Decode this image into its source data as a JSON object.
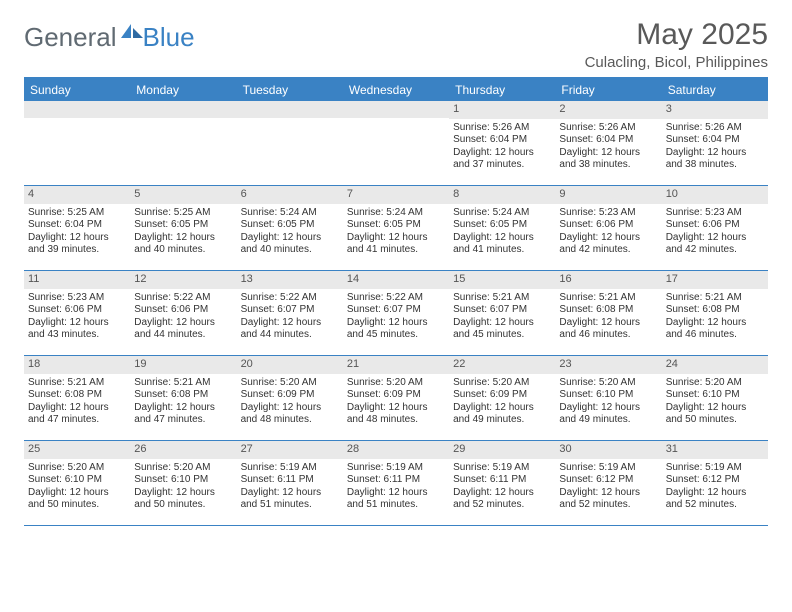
{
  "logo": {
    "general": "General",
    "blue": "Blue"
  },
  "title": "May 2025",
  "location": "Culacling, Bicol, Philippines",
  "dayHeaders": [
    "Sunday",
    "Monday",
    "Tuesday",
    "Wednesday",
    "Thursday",
    "Friday",
    "Saturday"
  ],
  "colors": {
    "accent": "#3a82c4",
    "headerText": "#595959",
    "daybg": "#e9e9e9"
  },
  "weeks": [
    [
      {
        "n": "",
        "sr": "",
        "ss": "",
        "dl1": "",
        "dl2": ""
      },
      {
        "n": "",
        "sr": "",
        "ss": "",
        "dl1": "",
        "dl2": ""
      },
      {
        "n": "",
        "sr": "",
        "ss": "",
        "dl1": "",
        "dl2": ""
      },
      {
        "n": "",
        "sr": "",
        "ss": "",
        "dl1": "",
        "dl2": ""
      },
      {
        "n": "1",
        "sr": "Sunrise: 5:26 AM",
        "ss": "Sunset: 6:04 PM",
        "dl1": "Daylight: 12 hours",
        "dl2": "and 37 minutes."
      },
      {
        "n": "2",
        "sr": "Sunrise: 5:26 AM",
        "ss": "Sunset: 6:04 PM",
        "dl1": "Daylight: 12 hours",
        "dl2": "and 38 minutes."
      },
      {
        "n": "3",
        "sr": "Sunrise: 5:26 AM",
        "ss": "Sunset: 6:04 PM",
        "dl1": "Daylight: 12 hours",
        "dl2": "and 38 minutes."
      }
    ],
    [
      {
        "n": "4",
        "sr": "Sunrise: 5:25 AM",
        "ss": "Sunset: 6:04 PM",
        "dl1": "Daylight: 12 hours",
        "dl2": "and 39 minutes."
      },
      {
        "n": "5",
        "sr": "Sunrise: 5:25 AM",
        "ss": "Sunset: 6:05 PM",
        "dl1": "Daylight: 12 hours",
        "dl2": "and 40 minutes."
      },
      {
        "n": "6",
        "sr": "Sunrise: 5:24 AM",
        "ss": "Sunset: 6:05 PM",
        "dl1": "Daylight: 12 hours",
        "dl2": "and 40 minutes."
      },
      {
        "n": "7",
        "sr": "Sunrise: 5:24 AM",
        "ss": "Sunset: 6:05 PM",
        "dl1": "Daylight: 12 hours",
        "dl2": "and 41 minutes."
      },
      {
        "n": "8",
        "sr": "Sunrise: 5:24 AM",
        "ss": "Sunset: 6:05 PM",
        "dl1": "Daylight: 12 hours",
        "dl2": "and 41 minutes."
      },
      {
        "n": "9",
        "sr": "Sunrise: 5:23 AM",
        "ss": "Sunset: 6:06 PM",
        "dl1": "Daylight: 12 hours",
        "dl2": "and 42 minutes."
      },
      {
        "n": "10",
        "sr": "Sunrise: 5:23 AM",
        "ss": "Sunset: 6:06 PM",
        "dl1": "Daylight: 12 hours",
        "dl2": "and 42 minutes."
      }
    ],
    [
      {
        "n": "11",
        "sr": "Sunrise: 5:23 AM",
        "ss": "Sunset: 6:06 PM",
        "dl1": "Daylight: 12 hours",
        "dl2": "and 43 minutes."
      },
      {
        "n": "12",
        "sr": "Sunrise: 5:22 AM",
        "ss": "Sunset: 6:06 PM",
        "dl1": "Daylight: 12 hours",
        "dl2": "and 44 minutes."
      },
      {
        "n": "13",
        "sr": "Sunrise: 5:22 AM",
        "ss": "Sunset: 6:07 PM",
        "dl1": "Daylight: 12 hours",
        "dl2": "and 44 minutes."
      },
      {
        "n": "14",
        "sr": "Sunrise: 5:22 AM",
        "ss": "Sunset: 6:07 PM",
        "dl1": "Daylight: 12 hours",
        "dl2": "and 45 minutes."
      },
      {
        "n": "15",
        "sr": "Sunrise: 5:21 AM",
        "ss": "Sunset: 6:07 PM",
        "dl1": "Daylight: 12 hours",
        "dl2": "and 45 minutes."
      },
      {
        "n": "16",
        "sr": "Sunrise: 5:21 AM",
        "ss": "Sunset: 6:08 PM",
        "dl1": "Daylight: 12 hours",
        "dl2": "and 46 minutes."
      },
      {
        "n": "17",
        "sr": "Sunrise: 5:21 AM",
        "ss": "Sunset: 6:08 PM",
        "dl1": "Daylight: 12 hours",
        "dl2": "and 46 minutes."
      }
    ],
    [
      {
        "n": "18",
        "sr": "Sunrise: 5:21 AM",
        "ss": "Sunset: 6:08 PM",
        "dl1": "Daylight: 12 hours",
        "dl2": "and 47 minutes."
      },
      {
        "n": "19",
        "sr": "Sunrise: 5:21 AM",
        "ss": "Sunset: 6:08 PM",
        "dl1": "Daylight: 12 hours",
        "dl2": "and 47 minutes."
      },
      {
        "n": "20",
        "sr": "Sunrise: 5:20 AM",
        "ss": "Sunset: 6:09 PM",
        "dl1": "Daylight: 12 hours",
        "dl2": "and 48 minutes."
      },
      {
        "n": "21",
        "sr": "Sunrise: 5:20 AM",
        "ss": "Sunset: 6:09 PM",
        "dl1": "Daylight: 12 hours",
        "dl2": "and 48 minutes."
      },
      {
        "n": "22",
        "sr": "Sunrise: 5:20 AM",
        "ss": "Sunset: 6:09 PM",
        "dl1": "Daylight: 12 hours",
        "dl2": "and 49 minutes."
      },
      {
        "n": "23",
        "sr": "Sunrise: 5:20 AM",
        "ss": "Sunset: 6:10 PM",
        "dl1": "Daylight: 12 hours",
        "dl2": "and 49 minutes."
      },
      {
        "n": "24",
        "sr": "Sunrise: 5:20 AM",
        "ss": "Sunset: 6:10 PM",
        "dl1": "Daylight: 12 hours",
        "dl2": "and 50 minutes."
      }
    ],
    [
      {
        "n": "25",
        "sr": "Sunrise: 5:20 AM",
        "ss": "Sunset: 6:10 PM",
        "dl1": "Daylight: 12 hours",
        "dl2": "and 50 minutes."
      },
      {
        "n": "26",
        "sr": "Sunrise: 5:20 AM",
        "ss": "Sunset: 6:10 PM",
        "dl1": "Daylight: 12 hours",
        "dl2": "and 50 minutes."
      },
      {
        "n": "27",
        "sr": "Sunrise: 5:19 AM",
        "ss": "Sunset: 6:11 PM",
        "dl1": "Daylight: 12 hours",
        "dl2": "and 51 minutes."
      },
      {
        "n": "28",
        "sr": "Sunrise: 5:19 AM",
        "ss": "Sunset: 6:11 PM",
        "dl1": "Daylight: 12 hours",
        "dl2": "and 51 minutes."
      },
      {
        "n": "29",
        "sr": "Sunrise: 5:19 AM",
        "ss": "Sunset: 6:11 PM",
        "dl1": "Daylight: 12 hours",
        "dl2": "and 52 minutes."
      },
      {
        "n": "30",
        "sr": "Sunrise: 5:19 AM",
        "ss": "Sunset: 6:12 PM",
        "dl1": "Daylight: 12 hours",
        "dl2": "and 52 minutes."
      },
      {
        "n": "31",
        "sr": "Sunrise: 5:19 AM",
        "ss": "Sunset: 6:12 PM",
        "dl1": "Daylight: 12 hours",
        "dl2": "and 52 minutes."
      }
    ]
  ]
}
